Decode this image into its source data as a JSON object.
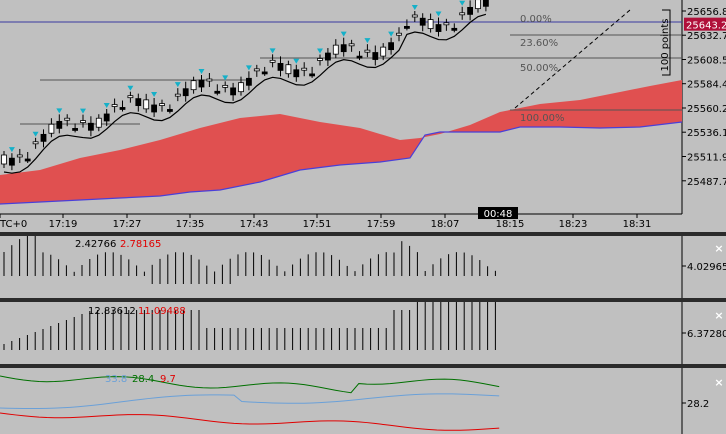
{
  "main": {
    "price_labels": [
      {
        "text": "25656.8",
        "value": 25656.8
      },
      {
        "text": "25632.7",
        "value": 25632.7
      },
      {
        "text": "25608.5",
        "value": 25608.5
      },
      {
        "text": "25584.4",
        "value": 25584.4
      },
      {
        "text": "25560.2",
        "value": 25560.2
      },
      {
        "text": "25536.1",
        "value": 25536.1
      },
      {
        "text": "25511.9",
        "value": 25511.9
      },
      {
        "text": "25487.7",
        "value": 25487.7
      }
    ],
    "current_price": "25643.2",
    "time_labels": [
      "TC+0",
      "17:19",
      "17:27",
      "17:35",
      "17:43",
      "17:51",
      "17:59",
      "18:07",
      "18:15",
      "18:23",
      "18:31"
    ],
    "time_label_highlight": "00:48",
    "fib_labels": [
      "0.00%",
      "23.60%",
      "50.00%",
      "100.00%"
    ],
    "points_label": "100 points"
  },
  "indicator1": {
    "value_a": "2.42766",
    "value_b": "2.78165",
    "axis": "4.02965"
  },
  "indicator2": {
    "value_a": "12.83612",
    "value_b": "11.09488",
    "axis": "6.37280"
  },
  "indicator3": {
    "value_a": "33.8",
    "value_b": "28.4",
    "value_c": "9.7",
    "axis": "28.2"
  },
  "colors": {
    "background": "#c0c0c0",
    "cloud": "#e05050",
    "close_button": "#ffffff",
    "current_price_bg": "#b0103a"
  },
  "close_label": "×"
}
